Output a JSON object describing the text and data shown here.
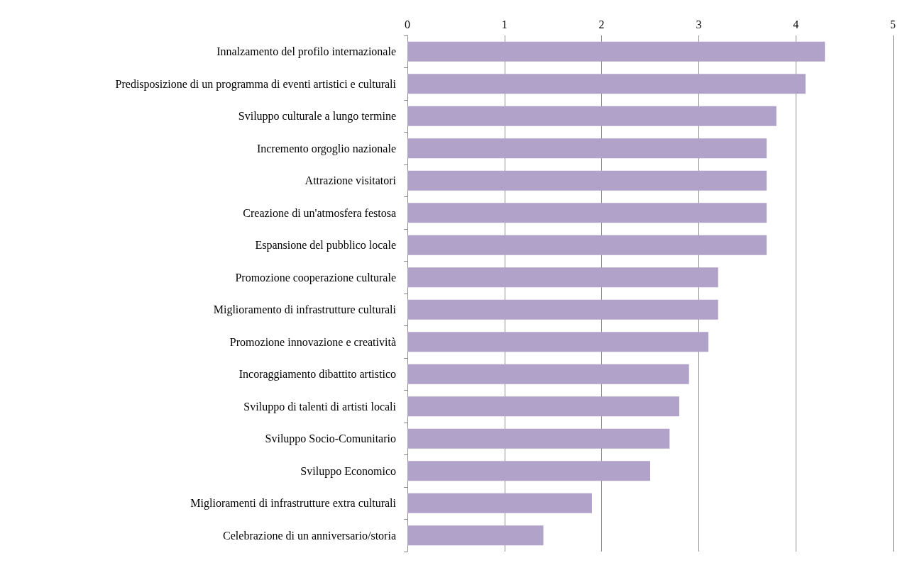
{
  "chart_data": {
    "type": "bar",
    "orientation": "horizontal",
    "categories": [
      "Innalzamento del profilo internazionale",
      "Predisposizione di un programma di eventi artistici e culturali",
      "Sviluppo culturale a lungo termine",
      "Incremento orgoglio nazionale",
      "Attrazione visitatori",
      "Creazione di un'atmosfera festosa",
      "Espansione del pubblico locale",
      "Promozione cooperazione culturale",
      "Miglioramento di infrastrutture culturali",
      "Promozione innovazione e creatività",
      "Incoraggiamento dibattito artistico",
      "Sviluppo di talenti di artisti locali",
      "Sviluppo Socio-Comunitario",
      "Sviluppo Economico",
      "Miglioramenti di infrastrutture extra culturali",
      "Celebrazione di un anniversario/storia"
    ],
    "values": [
      4.3,
      4.1,
      3.8,
      3.7,
      3.7,
      3.7,
      3.7,
      3.2,
      3.2,
      3.1,
      2.9,
      2.8,
      2.7,
      2.5,
      1.9,
      1.4
    ],
    "color": "#b1a2c9",
    "xlim": [
      0,
      5
    ],
    "xticks": [
      0,
      1,
      2,
      3,
      4,
      5
    ],
    "grid": "x"
  }
}
